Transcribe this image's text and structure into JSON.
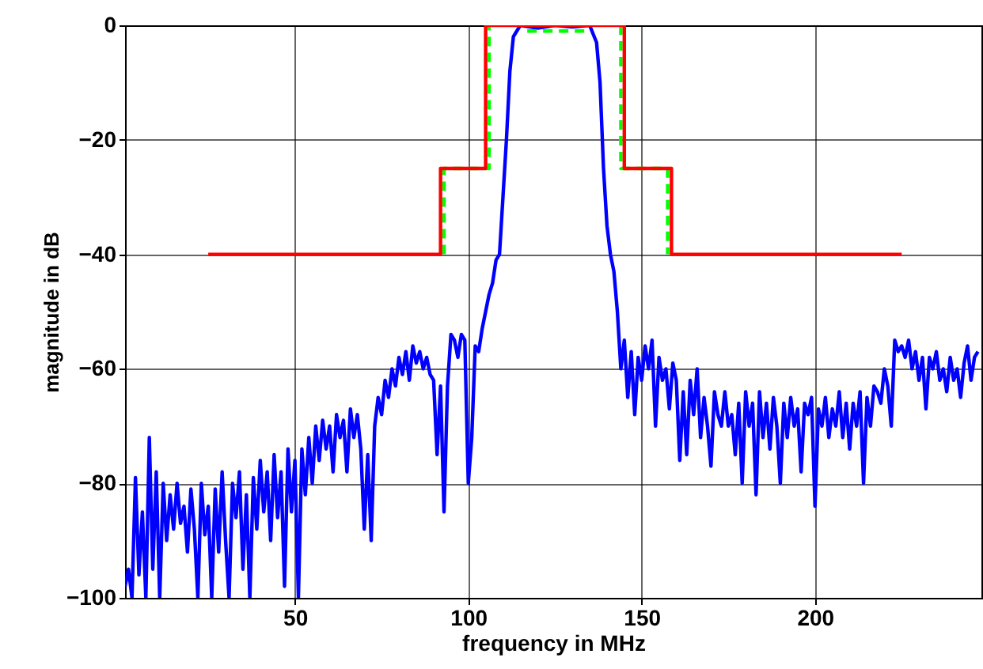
{
  "chart_data": {
    "type": "line",
    "xlabel": "frequency in MHz",
    "ylabel": "magnitude in dB",
    "xlim": [
      1,
      248
    ],
    "ylim": [
      -100,
      0
    ],
    "xticks": [
      50,
      100,
      150,
      200
    ],
    "yticks": [
      -100,
      -80,
      -60,
      -40,
      -20,
      0
    ],
    "grid": true,
    "marker": "none",
    "series": [
      {
        "color": "#0000ff",
        "line_style": "solid",
        "x": [
          1,
          2,
          3,
          4,
          5,
          6,
          7,
          8,
          9,
          10,
          11,
          12,
          13,
          14,
          15,
          16,
          17,
          18,
          19,
          20,
          21,
          22,
          23,
          24,
          25,
          26,
          27,
          28,
          29,
          30,
          31,
          32,
          33,
          34,
          35,
          36,
          37,
          38,
          39,
          40,
          41,
          42,
          43,
          44,
          45,
          46,
          47,
          48,
          49,
          50,
          51,
          52,
          53,
          54,
          55,
          56,
          57,
          58,
          59,
          60,
          61,
          62,
          63,
          64,
          65,
          66,
          67,
          68,
          69,
          70,
          71,
          72,
          73,
          74,
          75,
          76,
          77,
          78,
          79,
          80,
          81,
          82,
          83,
          84,
          85,
          86,
          87,
          88,
          89,
          90,
          91,
          92,
          93,
          94,
          95,
          96,
          97,
          98,
          99,
          100,
          101,
          102,
          103,
          104,
          105,
          106,
          107,
          108,
          109,
          110,
          111,
          112,
          113,
          115,
          120,
          125,
          130,
          135,
          137,
          138,
          139,
          140,
          141,
          142,
          143,
          144,
          145,
          146,
          147,
          148,
          149,
          150,
          151,
          152,
          153,
          154,
          155,
          156,
          157,
          158,
          159,
          160,
          161,
          162,
          163,
          164,
          165,
          166,
          167,
          168,
          169,
          170,
          171,
          172,
          173,
          174,
          175,
          176,
          177,
          178,
          179,
          180,
          181,
          182,
          183,
          184,
          185,
          186,
          187,
          188,
          189,
          190,
          191,
          192,
          193,
          194,
          195,
          196,
          197,
          198,
          199,
          200,
          201,
          202,
          203,
          204,
          205,
          206,
          207,
          208,
          209,
          210,
          211,
          212,
          213,
          214,
          215,
          216,
          217,
          218,
          219,
          220,
          221,
          222,
          223,
          224,
          225,
          226,
          227,
          228,
          229,
          230,
          231,
          232,
          233,
          234,
          235,
          236,
          237,
          238,
          239,
          240,
          241,
          242,
          243,
          244,
          245,
          246,
          247
        ],
        "values": [
          -98,
          -95,
          -100,
          -79,
          -96,
          -85,
          -100,
          -72,
          -95,
          -78,
          -100,
          -80,
          -90,
          -82,
          -88,
          -80,
          -87,
          -84,
          -92,
          -81,
          -88,
          -100,
          -80,
          -89,
          -84,
          -100,
          -81,
          -92,
          -78,
          -90,
          -100,
          -80,
          -86,
          -78,
          -95,
          -82,
          -100,
          -79,
          -88,
          -76,
          -85,
          -78,
          -90,
          -75,
          -86,
          -78,
          -98,
          -74,
          -85,
          -76,
          -100,
          -74,
          -82,
          -72,
          -80,
          -70,
          -76,
          -69,
          -74,
          -70,
          -78,
          -68,
          -72,
          -69,
          -78,
          -67,
          -72,
          -68,
          -74,
          -88,
          -75,
          -90,
          -70,
          -65,
          -68,
          -62,
          -65,
          -60,
          -63,
          -58,
          -61,
          -57,
          -62,
          -56,
          -59,
          -57,
          -60,
          -58,
          -61,
          -62,
          -75,
          -63,
          -85,
          -63,
          -54,
          -55,
          -58,
          -54,
          -55,
          -80,
          -72,
          -56,
          -57,
          -53,
          -50,
          -47,
          -45,
          -41,
          -40,
          -30,
          -20,
          -8,
          -2,
          0,
          -0.5,
          0,
          -0.3,
          0,
          -3,
          -10,
          -25,
          -35,
          -40,
          -43,
          -50,
          -60,
          -55,
          -65,
          -57,
          -68,
          -58,
          -62,
          -56,
          -60,
          -55,
          -70,
          -58,
          -62,
          -60,
          -67,
          -59,
          -62,
          -76,
          -64,
          -75,
          -62,
          -68,
          -60,
          -72,
          -65,
          -70,
          -77,
          -64,
          -68,
          -70,
          -64,
          -70,
          -68,
          -75,
          -66,
          -80,
          -64,
          -70,
          -66,
          -82,
          -64,
          -72,
          -66,
          -74,
          -65,
          -70,
          -80,
          -66,
          -72,
          -65,
          -70,
          -67,
          -78,
          -66,
          -68,
          -65,
          -84,
          -67,
          -70,
          -65,
          -72,
          -67,
          -70,
          -64,
          -72,
          -66,
          -74,
          -66,
          -70,
          -64,
          -80,
          -65,
          -70,
          -63,
          -64,
          -66,
          -60,
          -63,
          -70,
          -55,
          -57,
          -56,
          -58,
          -55,
          -60,
          -57,
          -62,
          -58,
          -67,
          -58,
          -60,
          -57,
          -62,
          -60,
          -64,
          -58,
          -62,
          -60,
          -65,
          -59,
          -56,
          -62,
          -58,
          -57
        ]
      },
      {
        "color": "#00ff00",
        "line_style": "dashed",
        "x": [
          93,
          93,
          106,
          106,
          110,
          117,
          134,
          140,
          144,
          144,
          157.5,
          157.5
        ],
        "values": [
          -40,
          -25,
          -25,
          0,
          null,
          -1,
          -1,
          null,
          0,
          -25,
          -25,
          -40
        ]
      },
      {
        "color": "#ff0000",
        "line_style": "solid",
        "x": [
          25,
          92,
          92,
          105,
          105,
          145,
          145,
          158.6,
          158.6,
          225
        ],
        "values": [
          -40,
          -40,
          -25,
          -25,
          0,
          0,
          -25,
          -25,
          -40,
          -40
        ]
      }
    ]
  }
}
